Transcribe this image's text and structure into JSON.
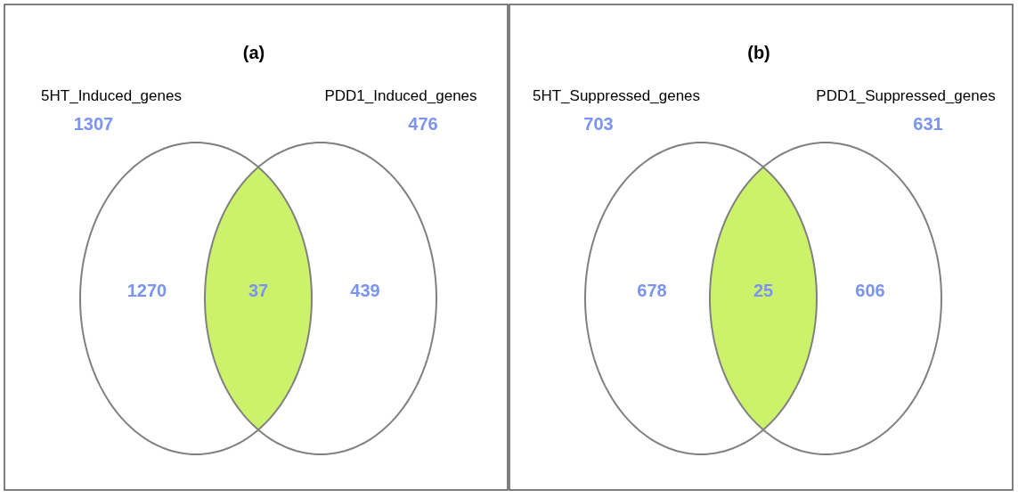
{
  "chart_data": [
    {
      "type": "other",
      "title": "(a)",
      "categories": [
        "5HT_Induced_genes",
        null,
        "PDD1_Induced_genes"
      ],
      "values": [
        1270,
        37,
        439
      ],
      "colors": [
        "#ffffff",
        "#ccf26b",
        "#ffffff"
      ],
      "data_labels": true,
      "totals": [
        "1307",
        "476"
      ]
    },
    {
      "type": "other",
      "title": "(b)",
      "categories": [
        "5HT_Suppressed_genes",
        null,
        "PDD1_Suppressed_genes"
      ],
      "values": [
        678,
        25,
        606
      ],
      "colors": [
        "#ffffff",
        "#ccf26b",
        "#ffffff"
      ],
      "data_labels": true,
      "totals": [
        "703",
        "631"
      ]
    }
  ]
}
